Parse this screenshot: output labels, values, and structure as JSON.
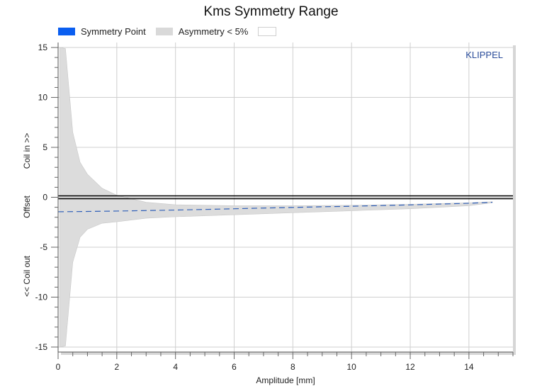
{
  "chart_data": {
    "type": "area",
    "title": "Kms Symmetry Range",
    "xlabel": "Amplitude [mm]",
    "ylabel_parts": [
      "<< Coil out",
      "Offset",
      "Coil in >>"
    ],
    "xlim": [
      0,
      15.5
    ],
    "ylim": [
      -15.5,
      15.5
    ],
    "x_ticks": [
      0,
      2,
      4,
      6,
      8,
      10,
      12,
      14
    ],
    "y_ticks": [
      15,
      10,
      5,
      0,
      -5,
      -10,
      -15
    ],
    "grid": true,
    "legend_position": "top",
    "watermark": "KLIPPEL",
    "series": [
      {
        "name": "Symmetry Point",
        "style": "dashed",
        "color": "#2f5fb8",
        "x": [
          0,
          1,
          2,
          3,
          4,
          5,
          6,
          7,
          8,
          9,
          10,
          11,
          12,
          13,
          14,
          14.8
        ],
        "y": [
          -1.45,
          -1.42,
          -1.38,
          -1.33,
          -1.28,
          -1.22,
          -1.15,
          -1.08,
          -1.02,
          -0.95,
          -0.9,
          -0.83,
          -0.76,
          -0.68,
          -0.6,
          -0.5
        ]
      },
      {
        "name": "Asymmetry < 5%",
        "style": "band",
        "color": "#dcdcdc",
        "x": [
          0.05,
          0.25,
          0.5,
          0.75,
          1,
          1.5,
          2,
          3,
          4,
          6,
          8,
          10,
          12,
          14,
          14.8
        ],
        "upper": [
          15.0,
          14.9,
          6.5,
          3.5,
          2.3,
          0.9,
          0.2,
          -0.5,
          -0.75,
          -0.85,
          -0.85,
          -0.8,
          -0.7,
          -0.55,
          -0.45
        ],
        "lower": [
          -15.0,
          -14.9,
          -6.5,
          -4.0,
          -3.2,
          -2.6,
          -2.45,
          -2.1,
          -1.95,
          -1.75,
          -1.55,
          -1.35,
          -1.15,
          -0.85,
          -0.55
        ]
      },
      {
        "name": "",
        "style": "horizontal",
        "color": "#000000",
        "x": [
          0,
          15.5
        ],
        "y": [
          0,
          0
        ]
      }
    ]
  },
  "legend": [
    {
      "label": "Symmetry Point",
      "color": "#0a5ef0"
    },
    {
      "label": "Asymmetry < 5%",
      "color": "#d9d9d9"
    },
    {
      "label": "",
      "color": "#ffffff"
    }
  ]
}
